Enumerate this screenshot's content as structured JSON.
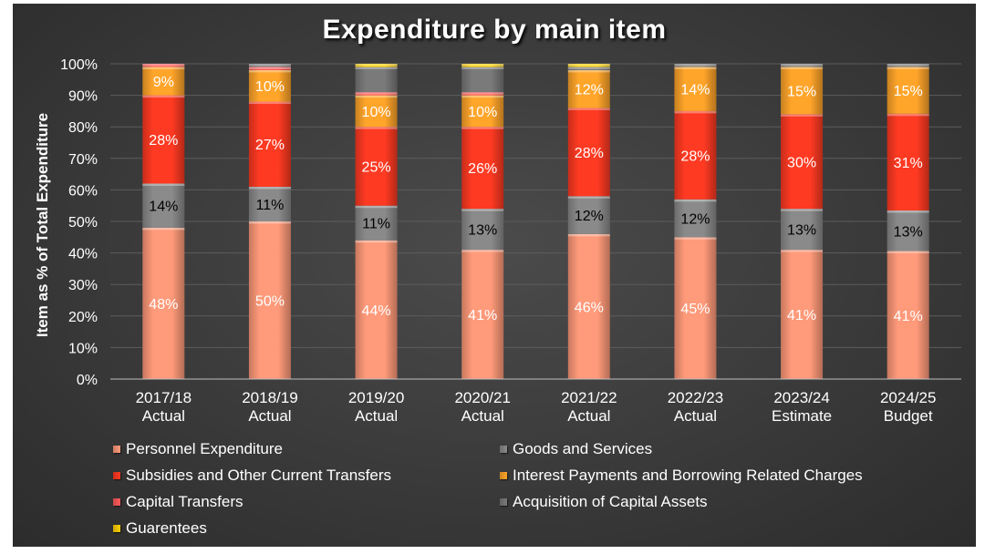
{
  "chart_data": {
    "type": "bar",
    "stacked": true,
    "percent": true,
    "title": "Expenditure by main item",
    "ylabel": "Item as % of Total Expenditure",
    "xlabel": "",
    "ylim": [
      0,
      100
    ],
    "yticks": [
      "0%",
      "10%",
      "20%",
      "30%",
      "40%",
      "50%",
      "60%",
      "70%",
      "80%",
      "90%",
      "100%"
    ],
    "categories": [
      [
        "2017/18",
        "Actual"
      ],
      [
        "2018/19",
        "Actual"
      ],
      [
        "2019/20",
        "Actual"
      ],
      [
        "2020/21",
        "Actual"
      ],
      [
        "2021/22",
        "Actual"
      ],
      [
        "2022/23",
        "Actual"
      ],
      [
        "2023/24",
        "Estimate"
      ],
      [
        "2024/25",
        "Budget"
      ]
    ],
    "series": [
      {
        "name": "Personnel Expenditure",
        "color": "#ff9a7a",
        "text_color": "#ffffff",
        "values": [
          48,
          50,
          44,
          41,
          46,
          45,
          41,
          41
        ],
        "labels": [
          "48%",
          "50%",
          "44%",
          "41%",
          "46%",
          "45%",
          "41%",
          "41%"
        ]
      },
      {
        "name": "Goods and Services",
        "color": "#8a8a8a",
        "text_color": "#000000",
        "values": [
          14,
          11,
          11,
          13,
          12,
          12,
          13,
          13
        ],
        "labels": [
          "14%",
          "11%",
          "11%",
          "13%",
          "12%",
          "12%",
          "13%",
          "13%"
        ]
      },
      {
        "name": "Subsidies and Other Current Transfers",
        "color": "#ff3a22",
        "text_color": "#ffffff",
        "values": [
          28,
          27,
          25,
          26,
          28,
          28,
          30,
          31
        ],
        "labels": [
          "28%",
          "27%",
          "25%",
          "26%",
          "28%",
          "28%",
          "30%",
          "31%"
        ]
      },
      {
        "name": "Interest Payments and Borrowing Related Charges",
        "color": "#ffa52a",
        "text_color": "#ffffff",
        "values": [
          9,
          10,
          10,
          10,
          12,
          14,
          15,
          15
        ],
        "labels": [
          "9%",
          "10%",
          "10%",
          "10%",
          "12%",
          "14%",
          "15%",
          "15%"
        ]
      },
      {
        "name": "Capital Transfers",
        "color": "#ff5a5a",
        "text_color": "#ffffff",
        "values": [
          1,
          1,
          1,
          1,
          0,
          0,
          0,
          0
        ],
        "labels": [
          "",
          "",
          "",
          "",
          "",
          "",
          "",
          ""
        ]
      },
      {
        "name": "Acquisition of Capital Assets",
        "color": "#7a7a7a",
        "text_color": "#000000",
        "values": [
          0,
          1,
          8,
          8,
          1,
          1,
          1,
          1
        ],
        "labels": [
          "",
          "",
          "",
          "",
          "",
          "",
          "",
          ""
        ]
      },
      {
        "name": "Guarentees",
        "color": "#ffd000",
        "text_color": "#000000",
        "values": [
          0,
          0,
          1,
          1,
          1,
          0,
          0,
          0
        ],
        "labels": [
          "",
          "",
          "",
          "",
          "",
          "",
          "",
          ""
        ]
      }
    ],
    "legend": {
      "placement": "bottom",
      "columns": [
        [
          "Personnel Expenditure",
          "Subsidies and Other Current Transfers",
          "Capital Transfers",
          "Guarentees"
        ],
        [
          "Goods and Services",
          "Interest Payments and Borrowing Related Charges",
          "Acquisition of Capital Assets"
        ]
      ]
    },
    "grid": true
  }
}
